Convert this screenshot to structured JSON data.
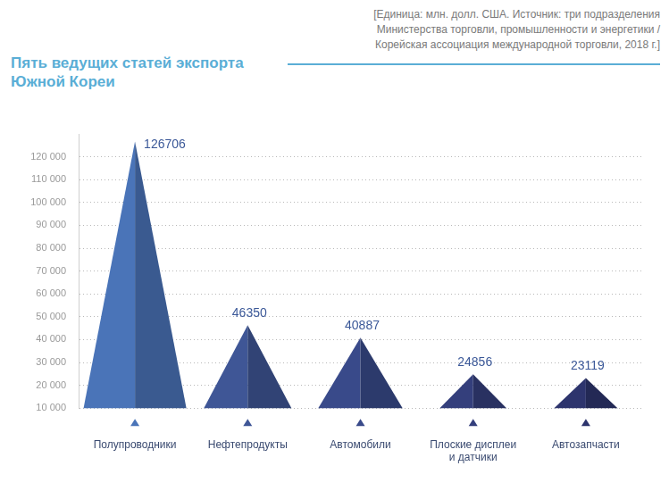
{
  "chart_data": {
    "type": "bar",
    "title": "Пять ведущих статей экспорта Южной Кореи",
    "subtitle": [
      "[Единица: млн. долл. США. Источник: три подразделения",
      "Министерства торговли, промышленности и энергетики /",
      "Корейская ассоциация международной торговли, 2018 г.]"
    ],
    "categories": [
      "Полупроводники",
      "Нефтепродукты",
      "Автомобили",
      "Плоские дисплеи и датчики",
      "Автозапчасти"
    ],
    "values": [
      126706,
      46350,
      40887,
      24856,
      23119
    ],
    "colors": [
      "#4a74b8",
      "#3f5696",
      "#394a8a",
      "#343f7c",
      "#2d346d"
    ],
    "ylim": [
      10000,
      130000
    ],
    "yticks": [
      {
        "value": 10000,
        "label": "10 000"
      },
      {
        "value": 20000,
        "label": "20 000"
      },
      {
        "value": 30000,
        "label": "30 000"
      },
      {
        "value": 40000,
        "label": "40 000"
      },
      {
        "value": 50000,
        "label": "50 000"
      },
      {
        "value": 60000,
        "label": "60 000"
      },
      {
        "value": 70000,
        "label": "70 000"
      },
      {
        "value": 80000,
        "label": "80 000"
      },
      {
        "value": 90000,
        "label": "90 000"
      },
      {
        "value": 100000,
        "label": "100 000"
      },
      {
        "value": 110000,
        "label": "110 000"
      },
      {
        "value": 120000,
        "label": "120 000"
      }
    ],
    "grid": true,
    "data_labels": true
  }
}
